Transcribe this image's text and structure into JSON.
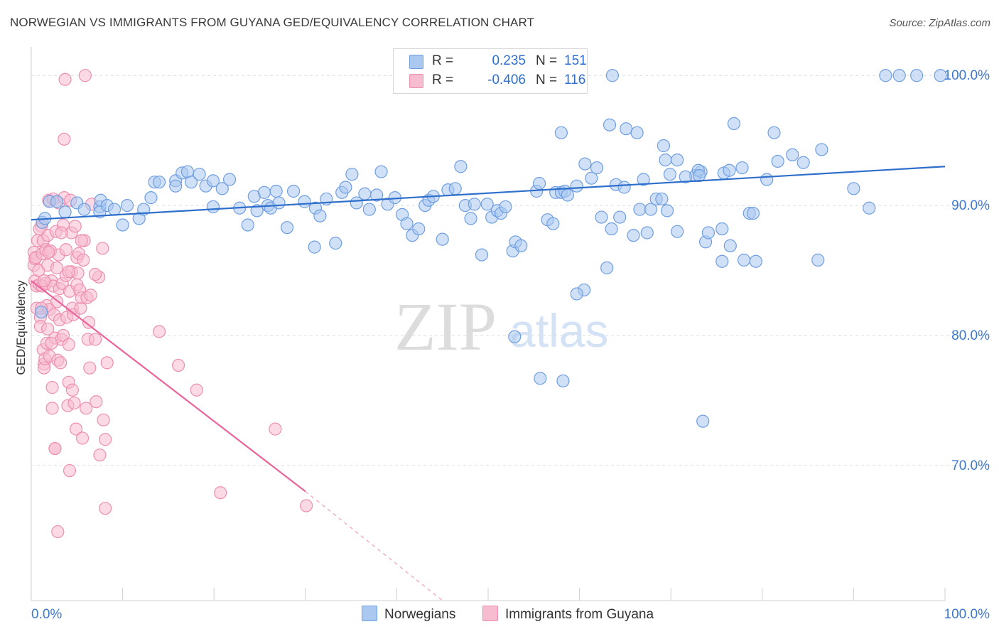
{
  "title": "NORWEGIAN VS IMMIGRANTS FROM GUYANA GED/EQUIVALENCY CORRELATION CHART",
  "source": "Source: ZipAtlas.com",
  "watermark": {
    "zip": "ZIP",
    "atlas": "atlas"
  },
  "legend": {
    "rows": [
      {
        "r_label": "R =",
        "r_value": "0.235",
        "n_label": "N =",
        "n_value": "151"
      },
      {
        "r_label": "R =",
        "r_value": "-0.406",
        "n_label": "N =",
        "n_value": "116"
      }
    ]
  },
  "bottom_legend": {
    "series1": "Norwegians",
    "series2": "Immigrants from Guyana"
  },
  "colors": {
    "blue_fill": "#aac8f0",
    "blue_stroke": "#6f9ee0",
    "blue_line": "#2e6fcc",
    "pink_fill": "#f7bcd0",
    "pink_stroke": "#ec8fb0",
    "pink_line": "#e8649a",
    "axis_text": "#3b78d1",
    "grid": "#dddddd"
  },
  "chart_data": {
    "type": "scatter",
    "title": "NORWEGIAN VS IMMIGRANTS FROM GUYANA GED/EQUIVALENCY CORRELATION CHART",
    "xlabel": "",
    "ylabel": "GED/Equivalency",
    "xlim": [
      0,
      100
    ],
    "ylim": [
      59.6,
      102.2
    ],
    "x_tick_labels": [
      "0.0%",
      "100.0%"
    ],
    "y_ticks": [
      70,
      80,
      90,
      100
    ],
    "y_tick_labels": [
      "70.0%",
      "80.0%",
      "90.0%",
      "100.0%"
    ],
    "grid": true,
    "series": [
      {
        "name": "Norwegians",
        "r": 0.235,
        "n": 151,
        "trend": {
          "x": [
            0,
            100
          ],
          "y": [
            88.9,
            93.0
          ]
        },
        "points": [
          [
            1.1,
            81.8
          ],
          [
            1.2,
            88.7
          ],
          [
            1.5,
            89.0
          ],
          [
            2.0,
            90.3
          ],
          [
            2.8,
            90.3
          ],
          [
            3.7,
            89.5
          ],
          [
            5.0,
            90.2
          ],
          [
            5.8,
            89.7
          ],
          [
            7.5,
            89.9
          ],
          [
            7.5,
            89.5
          ],
          [
            7.6,
            90.4
          ],
          [
            8.3,
            90.0
          ],
          [
            9.1,
            89.7
          ],
          [
            10.0,
            88.5
          ],
          [
            10.5,
            90.0
          ],
          [
            11.8,
            89.0
          ],
          [
            12.3,
            89.7
          ],
          [
            13.1,
            90.6
          ],
          [
            13.5,
            91.8
          ],
          [
            14.0,
            91.8
          ],
          [
            15.8,
            91.9
          ],
          [
            15.8,
            91.5
          ],
          [
            16.5,
            92.5
          ],
          [
            17.1,
            92.6
          ],
          [
            17.5,
            91.8
          ],
          [
            18.4,
            92.4
          ],
          [
            19.1,
            91.5
          ],
          [
            19.9,
            91.9
          ],
          [
            19.9,
            89.9
          ],
          [
            20.9,
            91.3
          ],
          [
            21.7,
            92.0
          ],
          [
            22.8,
            89.8
          ],
          [
            23.7,
            88.5
          ],
          [
            24.4,
            90.7
          ],
          [
            24.7,
            89.6
          ],
          [
            25.5,
            91.0
          ],
          [
            25.9,
            90.0
          ],
          [
            26.2,
            89.8
          ],
          [
            26.8,
            91.1
          ],
          [
            27.1,
            90.2
          ],
          [
            28.0,
            88.3
          ],
          [
            28.7,
            91.1
          ],
          [
            29.9,
            90.3
          ],
          [
            31.0,
            86.8
          ],
          [
            31.1,
            89.8
          ],
          [
            31.6,
            89.2
          ],
          [
            32.3,
            90.5
          ],
          [
            33.3,
            87.1
          ],
          [
            34.0,
            91.0
          ],
          [
            34.4,
            91.4
          ],
          [
            35.1,
            92.4
          ],
          [
            35.6,
            90.2
          ],
          [
            36.5,
            90.9
          ],
          [
            37.0,
            89.7
          ],
          [
            37.8,
            90.8
          ],
          [
            38.3,
            92.6
          ],
          [
            39.0,
            90.1
          ],
          [
            39.8,
            90.6
          ],
          [
            40.6,
            89.3
          ],
          [
            41.1,
            88.6
          ],
          [
            41.7,
            87.7
          ],
          [
            42.4,
            88.2
          ],
          [
            43.1,
            90.0
          ],
          [
            43.5,
            90.4
          ],
          [
            44.0,
            90.7
          ],
          [
            45.0,
            87.4
          ],
          [
            45.6,
            91.2
          ],
          [
            46.4,
            91.3
          ],
          [
            47.0,
            93.0
          ],
          [
            47.5,
            90.0
          ],
          [
            48.1,
            89.0
          ],
          [
            48.5,
            90.1
          ],
          [
            49.3,
            86.2
          ],
          [
            49.9,
            90.1
          ],
          [
            50.4,
            89.1
          ],
          [
            51.0,
            89.6
          ],
          [
            51.4,
            89.4
          ],
          [
            51.9,
            89.9
          ],
          [
            52.7,
            86.5
          ],
          [
            53.0,
            87.2
          ],
          [
            53.6,
            86.9
          ],
          [
            55.3,
            91.1
          ],
          [
            55.6,
            91.7
          ],
          [
            56.5,
            88.9
          ],
          [
            57.1,
            88.6
          ],
          [
            57.4,
            91.0
          ],
          [
            58.0,
            91.0
          ],
          [
            58.4,
            91.1
          ],
          [
            58.7,
            90.8
          ],
          [
            59.7,
            91.5
          ],
          [
            60.6,
            93.2
          ],
          [
            61.3,
            92.1
          ],
          [
            61.9,
            92.9
          ],
          [
            62.4,
            89.1
          ],
          [
            63.0,
            85.2
          ],
          [
            63.5,
            88.2
          ],
          [
            64.0,
            91.6
          ],
          [
            64.4,
            89.1
          ],
          [
            64.9,
            91.4
          ],
          [
            65.9,
            87.7
          ],
          [
            66.6,
            89.7
          ],
          [
            67.4,
            87.9
          ],
          [
            67.8,
            89.7
          ],
          [
            68.4,
            90.5
          ],
          [
            69.0,
            90.5
          ],
          [
            69.6,
            89.6
          ],
          [
            70.7,
            88.0
          ],
          [
            72.7,
            92.3
          ],
          [
            73.8,
            87.2
          ],
          [
            74.1,
            87.9
          ],
          [
            75.6,
            85.7
          ],
          [
            75.8,
            92.5
          ],
          [
            76.4,
            92.7
          ],
          [
            76.9,
            96.3
          ],
          [
            77.8,
            92.9
          ],
          [
            78.6,
            89.4
          ],
          [
            79.0,
            89.4
          ],
          [
            79.3,
            85.7
          ],
          [
            80.5,
            92.0
          ],
          [
            81.3,
            95.6
          ],
          [
            81.7,
            93.4
          ],
          [
            83.3,
            93.9
          ],
          [
            84.5,
            93.3
          ],
          [
            86.5,
            94.3
          ],
          [
            86.1,
            85.8
          ],
          [
            90.0,
            91.3
          ],
          [
            91.7,
            89.8
          ],
          [
            93.5,
            100.0
          ],
          [
            95.0,
            100.0
          ],
          [
            96.9,
            100.0
          ],
          [
            99.5,
            100.0
          ],
          [
            69.4,
            93.5
          ],
          [
            73.3,
            92.6
          ],
          [
            71.6,
            92.2
          ],
          [
            73.0,
            92.7
          ],
          [
            67.0,
            92.0
          ],
          [
            69.9,
            92.4
          ],
          [
            58.0,
            95.6
          ],
          [
            63.3,
            96.2
          ],
          [
            65.1,
            95.9
          ],
          [
            66.3,
            95.6
          ],
          [
            69.2,
            94.6
          ],
          [
            70.7,
            93.5
          ],
          [
            73.1,
            92.3
          ],
          [
            75.6,
            88.2
          ],
          [
            76.5,
            86.9
          ],
          [
            78.0,
            85.8
          ],
          [
            52.9,
            79.9
          ],
          [
            55.7,
            76.7
          ],
          [
            58.2,
            76.5
          ],
          [
            73.5,
            73.4
          ],
          [
            60.5,
            83.5
          ],
          [
            59.7,
            83.2
          ],
          [
            50.0,
            100.0
          ],
          [
            63.6,
            100.0
          ]
        ]
      },
      {
        "name": "Immigrants from Guyana",
        "r": -0.406,
        "n": 116,
        "trend": {
          "x": [
            0,
            30
          ],
          "y": [
            84.2,
            68.0
          ]
        },
        "trend_dashed": {
          "x": [
            30,
            45
          ],
          "y": [
            68.0,
            59.6
          ]
        },
        "points": [
          [
            0.3,
            85.4
          ],
          [
            0.3,
            86.4
          ],
          [
            0.4,
            84.2
          ],
          [
            0.4,
            85.9
          ],
          [
            0.5,
            86.0
          ],
          [
            0.6,
            83.8
          ],
          [
            0.6,
            82.1
          ],
          [
            0.7,
            87.3
          ],
          [
            0.8,
            85.0
          ],
          [
            0.9,
            83.9
          ],
          [
            1.0,
            81.4
          ],
          [
            1.0,
            80.7
          ],
          [
            1.1,
            88.4
          ],
          [
            1.2,
            86.3
          ],
          [
            1.2,
            83.8
          ],
          [
            1.3,
            87.3
          ],
          [
            1.3,
            78.9
          ],
          [
            1.4,
            77.8
          ],
          [
            1.4,
            77.5
          ],
          [
            1.5,
            78.2
          ],
          [
            1.6,
            86.6
          ],
          [
            1.6,
            84.0
          ],
          [
            1.7,
            82.3
          ],
          [
            1.7,
            79.4
          ],
          [
            1.8,
            87.7
          ],
          [
            1.8,
            85.4
          ],
          [
            1.8,
            80.5
          ],
          [
            1.9,
            90.4
          ],
          [
            2.0,
            82.0
          ],
          [
            2.0,
            78.4
          ],
          [
            2.1,
            86.5
          ],
          [
            2.2,
            84.2
          ],
          [
            2.3,
            76.0
          ],
          [
            2.3,
            74.4
          ],
          [
            2.4,
            90.5
          ],
          [
            2.4,
            83.8
          ],
          [
            2.5,
            81.6
          ],
          [
            2.6,
            79.8
          ],
          [
            2.6,
            71.3
          ],
          [
            2.7,
            88.0
          ],
          [
            2.8,
            85.2
          ],
          [
            2.8,
            82.6
          ],
          [
            2.9,
            78.1
          ],
          [
            3.0,
            90.2
          ],
          [
            3.0,
            86.2
          ],
          [
            3.1,
            83.6
          ],
          [
            3.1,
            81.2
          ],
          [
            3.2,
            77.9
          ],
          [
            3.3,
            79.7
          ],
          [
            3.4,
            84.0
          ],
          [
            3.5,
            88.5
          ],
          [
            3.5,
            80.0
          ],
          [
            3.6,
            90.6
          ],
          [
            3.6,
            95.1
          ],
          [
            3.7,
            99.7
          ],
          [
            3.8,
            86.6
          ],
          [
            3.8,
            84.6
          ],
          [
            3.9,
            81.4
          ],
          [
            4.0,
            74.6
          ],
          [
            4.1,
            76.4
          ],
          [
            4.1,
            79.3
          ],
          [
            4.2,
            83.4
          ],
          [
            4.2,
            69.6
          ],
          [
            4.3,
            90.4
          ],
          [
            4.4,
            87.9
          ],
          [
            4.4,
            84.9
          ],
          [
            4.5,
            82.1
          ],
          [
            4.5,
            75.8
          ],
          [
            4.6,
            81.6
          ],
          [
            4.7,
            74.8
          ],
          [
            4.8,
            88.4
          ],
          [
            4.9,
            72.8
          ],
          [
            5.0,
            86.0
          ],
          [
            5.0,
            83.9
          ],
          [
            5.1,
            84.8
          ],
          [
            5.2,
            86.3
          ],
          [
            5.3,
            83.5
          ],
          [
            5.4,
            82.1
          ],
          [
            5.5,
            82.9
          ],
          [
            5.6,
            72.1
          ],
          [
            5.7,
            85.8
          ],
          [
            5.8,
            87.3
          ],
          [
            5.9,
            100.0
          ],
          [
            6.0,
            74.4
          ],
          [
            6.1,
            82.9
          ],
          [
            6.2,
            79.7
          ],
          [
            6.3,
            81.0
          ],
          [
            6.4,
            77.5
          ],
          [
            6.5,
            83.1
          ],
          [
            6.6,
            90.1
          ],
          [
            7.0,
            79.7
          ],
          [
            7.1,
            74.9
          ],
          [
            7.4,
            84.5
          ],
          [
            7.5,
            70.8
          ],
          [
            7.8,
            86.7
          ],
          [
            7.9,
            73.5
          ],
          [
            8.1,
            66.7
          ],
          [
            8.1,
            72.0
          ],
          [
            8.3,
            77.9
          ],
          [
            14.0,
            80.3
          ],
          [
            16.1,
            77.7
          ],
          [
            18.1,
            75.8
          ],
          [
            20.7,
            67.9
          ],
          [
            26.7,
            72.8
          ],
          [
            30.1,
            66.9
          ],
          [
            2.9,
            64.9
          ],
          [
            2.6,
            71.3
          ],
          [
            5.5,
            87.3
          ],
          [
            7.0,
            84.7
          ],
          [
            4.1,
            84.9
          ],
          [
            1.9,
            86.4
          ],
          [
            3.3,
            87.9
          ],
          [
            0.9,
            88.2
          ],
          [
            1.4,
            84.2
          ],
          [
            2.2,
            79.4
          ],
          [
            1.1,
            82.1
          ]
        ]
      }
    ]
  }
}
